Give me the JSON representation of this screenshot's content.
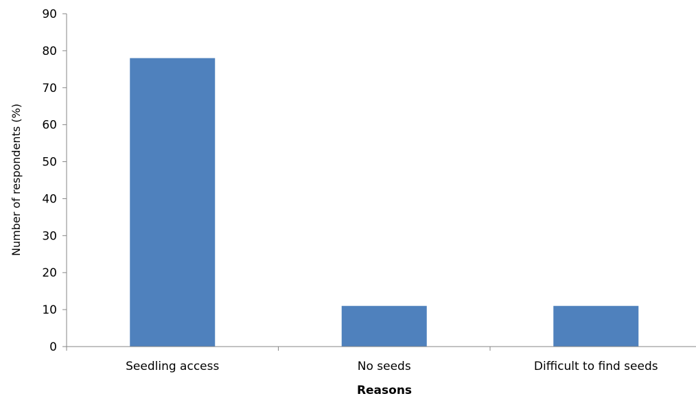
{
  "chart_data": {
    "type": "bar",
    "title": "",
    "xlabel": "Reasons",
    "ylabel": "Number of respondents (%)",
    "categories": [
      "Seedling access",
      "No seeds",
      "Difficult to find seeds"
    ],
    "values": [
      78,
      11,
      11
    ],
    "ylim": [
      0,
      90
    ],
    "yticks": [
      0,
      10,
      20,
      30,
      40,
      50,
      60,
      70,
      80,
      90
    ],
    "grid": false,
    "legend": "none",
    "bar_color": "#4F81BD",
    "axis_color": "#868686"
  }
}
